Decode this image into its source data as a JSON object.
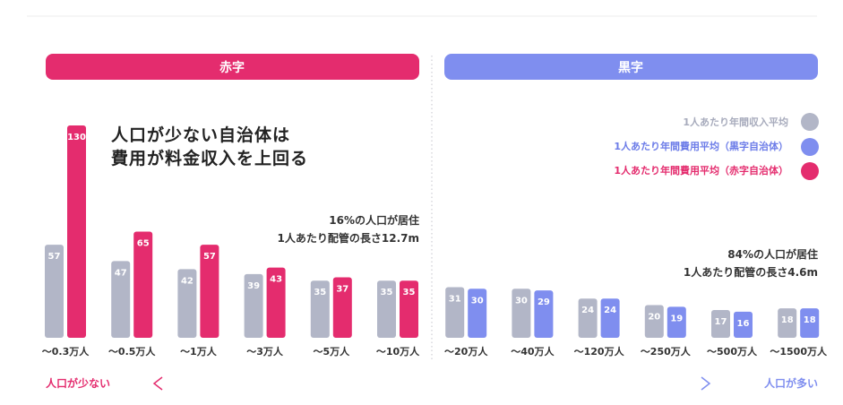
{
  "sections": {
    "deficit_label": "赤字",
    "surplus_label": "黒字"
  },
  "headline": [
    "人口が少ない自治体は",
    "費用が料金収入を上回る"
  ],
  "note_left": [
    "16%の人口が居住",
    "1人あたり配管の長さ12.7m"
  ],
  "note_right": [
    "84%の人口が居住",
    "1人あたり配管の長さ4.6m"
  ],
  "axis_labels": {
    "left": "人口が少ない",
    "right": "人口が多い"
  },
  "colors": {
    "deficit": "#E42C6E",
    "surplus": "#7F8EEF",
    "income": "#B2B6C7"
  },
  "chart_data": {
    "type": "bar",
    "categories": [
      "〜0.3万人",
      "〜0.5万人",
      "〜1万人",
      "〜3万人",
      "〜5万人",
      "〜10万人",
      "〜20万人",
      "〜40万人",
      "〜120万人",
      "〜250万人",
      "〜500万人",
      "〜1500万人"
    ],
    "series": [
      {
        "name": "1人あたり年間収入平均",
        "values": [
          57,
          47,
          42,
          39,
          35,
          35,
          31,
          30,
          24,
          20,
          17,
          18
        ]
      },
      {
        "name": "1人あたり年間費用平均（赤字自治体）",
        "values": [
          130,
          65,
          57,
          43,
          37,
          35,
          null,
          null,
          null,
          null,
          null,
          null
        ]
      },
      {
        "name": "1人あたり年間費用平均（黒字自治体）",
        "values": [
          null,
          null,
          null,
          null,
          null,
          null,
          30,
          29,
          24,
          19,
          16,
          18
        ]
      }
    ],
    "legend_order": [
      0,
      2,
      1
    ],
    "legend_position": "top-right",
    "ylim": [
      0,
      130
    ]
  }
}
